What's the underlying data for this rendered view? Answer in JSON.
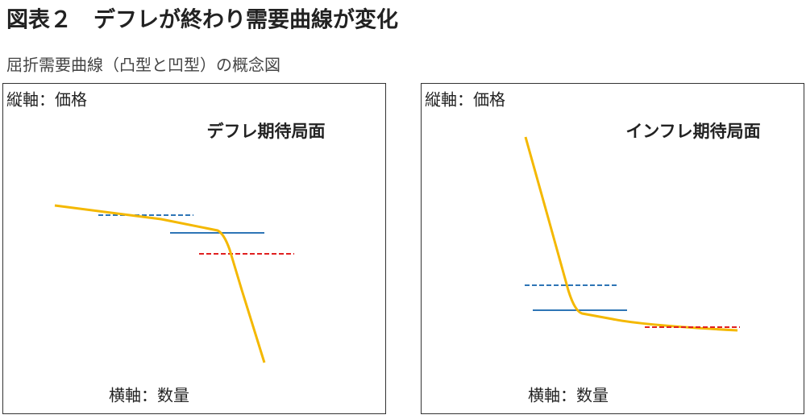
{
  "title": "図表２　デフレが終わり需要曲線が変化",
  "subtitle": "屈折需要曲線（凸型と凹型）の概念図",
  "panels": [
    {
      "y_label": "縦軸：価格",
      "title": "デフレ期待局面",
      "x_label": "横軸：数量"
    },
    {
      "y_label": "縦軸：価格",
      "title": "インフレ期待局面",
      "x_label": "横軸：数量"
    }
  ]
}
